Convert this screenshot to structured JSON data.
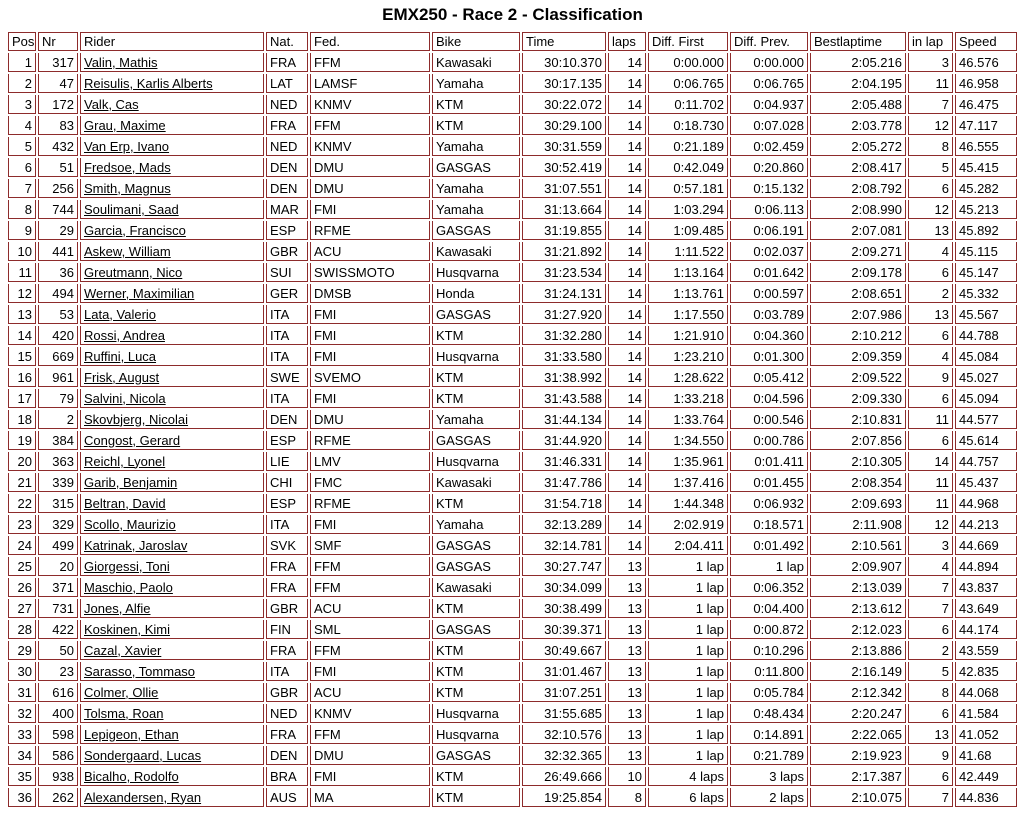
{
  "title": "EMX250 - Race 2 - Classification",
  "colors": {
    "border": "#8d2b2b",
    "text": "#000000",
    "background": "#ffffff"
  },
  "table": {
    "columns": [
      "Pos",
      "Nr",
      "Rider",
      "Nat.",
      "Fed.",
      "Bike",
      "Time",
      "laps",
      "Diff. First",
      "Diff. Prev.",
      "Bestlaptime",
      "in lap",
      "Speed"
    ],
    "rows": [
      [
        "1",
        "317",
        "Valin, Mathis",
        "FRA",
        "FFM",
        "Kawasaki",
        "30:10.370",
        "14",
        "0:00.000",
        "0:00.000",
        "2:05.216",
        "3",
        "46.576"
      ],
      [
        "2",
        "47",
        "Reisulis, Karlis Alberts",
        "LAT",
        "LAMSF",
        "Yamaha",
        "30:17.135",
        "14",
        "0:06.765",
        "0:06.765",
        "2:04.195",
        "11",
        "46.958"
      ],
      [
        "3",
        "172",
        "Valk, Cas",
        "NED",
        "KNMV",
        "KTM",
        "30:22.072",
        "14",
        "0:11.702",
        "0:04.937",
        "2:05.488",
        "7",
        "46.475"
      ],
      [
        "4",
        "83",
        "Grau, Maxime",
        "FRA",
        "FFM",
        "KTM",
        "30:29.100",
        "14",
        "0:18.730",
        "0:07.028",
        "2:03.778",
        "12",
        "47.117"
      ],
      [
        "5",
        "432",
        "Van Erp, Ivano",
        "NED",
        "KNMV",
        "Yamaha",
        "30:31.559",
        "14",
        "0:21.189",
        "0:02.459",
        "2:05.272",
        "8",
        "46.555"
      ],
      [
        "6",
        "51",
        "Fredsoe, Mads",
        "DEN",
        "DMU",
        "GASGAS",
        "30:52.419",
        "14",
        "0:42.049",
        "0:20.860",
        "2:08.417",
        "5",
        "45.415"
      ],
      [
        "7",
        "256",
        "Smith, Magnus",
        "DEN",
        "DMU",
        "Yamaha",
        "31:07.551",
        "14",
        "0:57.181",
        "0:15.132",
        "2:08.792",
        "6",
        "45.282"
      ],
      [
        "8",
        "744",
        "Soulimani, Saad",
        "MAR",
        "FMI",
        "Yamaha",
        "31:13.664",
        "14",
        "1:03.294",
        "0:06.113",
        "2:08.990",
        "12",
        "45.213"
      ],
      [
        "9",
        "29",
        "Garcia, Francisco",
        "ESP",
        "RFME",
        "GASGAS",
        "31:19.855",
        "14",
        "1:09.485",
        "0:06.191",
        "2:07.081",
        "13",
        "45.892"
      ],
      [
        "10",
        "441",
        "Askew, William",
        "GBR",
        "ACU",
        "Kawasaki",
        "31:21.892",
        "14",
        "1:11.522",
        "0:02.037",
        "2:09.271",
        "4",
        "45.115"
      ],
      [
        "11",
        "36",
        "Greutmann, Nico",
        "SUI",
        "SWISSMOTO",
        "Husqvarna",
        "31:23.534",
        "14",
        "1:13.164",
        "0:01.642",
        "2:09.178",
        "6",
        "45.147"
      ],
      [
        "12",
        "494",
        "Werner, Maximilian",
        "GER",
        "DMSB",
        "Honda",
        "31:24.131",
        "14",
        "1:13.761",
        "0:00.597",
        "2:08.651",
        "2",
        "45.332"
      ],
      [
        "13",
        "53",
        "Lata, Valerio",
        "ITA",
        "FMI",
        "GASGAS",
        "31:27.920",
        "14",
        "1:17.550",
        "0:03.789",
        "2:07.986",
        "13",
        "45.567"
      ],
      [
        "14",
        "420",
        "Rossi, Andrea",
        "ITA",
        "FMI",
        "KTM",
        "31:32.280",
        "14",
        "1:21.910",
        "0:04.360",
        "2:10.212",
        "6",
        "44.788"
      ],
      [
        "15",
        "669",
        "Ruffini, Luca",
        "ITA",
        "FMI",
        "Husqvarna",
        "31:33.580",
        "14",
        "1:23.210",
        "0:01.300",
        "2:09.359",
        "4",
        "45.084"
      ],
      [
        "16",
        "961",
        "Frisk, August",
        "SWE",
        "SVEMO",
        "KTM",
        "31:38.992",
        "14",
        "1:28.622",
        "0:05.412",
        "2:09.522",
        "9",
        "45.027"
      ],
      [
        "17",
        "79",
        "Salvini, Nicola",
        "ITA",
        "FMI",
        "KTM",
        "31:43.588",
        "14",
        "1:33.218",
        "0:04.596",
        "2:09.330",
        "6",
        "45.094"
      ],
      [
        "18",
        "2",
        "Skovbjerg, Nicolai",
        "DEN",
        "DMU",
        "Yamaha",
        "31:44.134",
        "14",
        "1:33.764",
        "0:00.546",
        "2:10.831",
        "11",
        "44.577"
      ],
      [
        "19",
        "384",
        "Congost, Gerard",
        "ESP",
        "RFME",
        "GASGAS",
        "31:44.920",
        "14",
        "1:34.550",
        "0:00.786",
        "2:07.856",
        "6",
        "45.614"
      ],
      [
        "20",
        "363",
        "Reichl, Lyonel",
        "LIE",
        "LMV",
        "Husqvarna",
        "31:46.331",
        "14",
        "1:35.961",
        "0:01.411",
        "2:10.305",
        "14",
        "44.757"
      ],
      [
        "21",
        "339",
        "Garib, Benjamin",
        "CHI",
        "FMC",
        "Kawasaki",
        "31:47.786",
        "14",
        "1:37.416",
        "0:01.455",
        "2:08.354",
        "11",
        "45.437"
      ],
      [
        "22",
        "315",
        "Beltran, David",
        "ESP",
        "RFME",
        "KTM",
        "31:54.718",
        "14",
        "1:44.348",
        "0:06.932",
        "2:09.693",
        "11",
        "44.968"
      ],
      [
        "23",
        "329",
        "Scollo, Maurizio",
        "ITA",
        "FMI",
        "Yamaha",
        "32:13.289",
        "14",
        "2:02.919",
        "0:18.571",
        "2:11.908",
        "12",
        "44.213"
      ],
      [
        "24",
        "499",
        "Katrinak, Jaroslav",
        "SVK",
        "SMF",
        "GASGAS",
        "32:14.781",
        "14",
        "2:04.411",
        "0:01.492",
        "2:10.561",
        "3",
        "44.669"
      ],
      [
        "25",
        "20",
        "Giorgessi, Toni",
        "FRA",
        "FFM",
        "GASGAS",
        "30:27.747",
        "13",
        "1 lap",
        "1 lap",
        "2:09.907",
        "4",
        "44.894"
      ],
      [
        "26",
        "371",
        "Maschio, Paolo",
        "FRA",
        "FFM",
        "Kawasaki",
        "30:34.099",
        "13",
        "1 lap",
        "0:06.352",
        "2:13.039",
        "7",
        "43.837"
      ],
      [
        "27",
        "731",
        "Jones, Alfie",
        "GBR",
        "ACU",
        "KTM",
        "30:38.499",
        "13",
        "1 lap",
        "0:04.400",
        "2:13.612",
        "7",
        "43.649"
      ],
      [
        "28",
        "422",
        "Koskinen, Kimi",
        "FIN",
        "SML",
        "GASGAS",
        "30:39.371",
        "13",
        "1 lap",
        "0:00.872",
        "2:12.023",
        "6",
        "44.174"
      ],
      [
        "29",
        "50",
        "Cazal, Xavier",
        "FRA",
        "FFM",
        "KTM",
        "30:49.667",
        "13",
        "1 lap",
        "0:10.296",
        "2:13.886",
        "2",
        "43.559"
      ],
      [
        "30",
        "23",
        "Sarasso, Tommaso",
        "ITA",
        "FMI",
        "KTM",
        "31:01.467",
        "13",
        "1 lap",
        "0:11.800",
        "2:16.149",
        "5",
        "42.835"
      ],
      [
        "31",
        "616",
        "Colmer, Ollie",
        "GBR",
        "ACU",
        "KTM",
        "31:07.251",
        "13",
        "1 lap",
        "0:05.784",
        "2:12.342",
        "8",
        "44.068"
      ],
      [
        "32",
        "400",
        "Tolsma, Roan",
        "NED",
        "KNMV",
        "Husqvarna",
        "31:55.685",
        "13",
        "1 lap",
        "0:48.434",
        "2:20.247",
        "6",
        "41.584"
      ],
      [
        "33",
        "598",
        "Lepigeon, Ethan",
        "FRA",
        "FFM",
        "Husqvarna",
        "32:10.576",
        "13",
        "1 lap",
        "0:14.891",
        "2:22.065",
        "13",
        "41.052"
      ],
      [
        "34",
        "586",
        "Sondergaard, Lucas",
        "DEN",
        "DMU",
        "GASGAS",
        "32:32.365",
        "13",
        "1 lap",
        "0:21.789",
        "2:19.923",
        "9",
        "41.68"
      ],
      [
        "35",
        "938",
        "Bicalho, Rodolfo",
        "BRA",
        "FMI",
        "KTM",
        "26:49.666",
        "10",
        "4 laps",
        "3 laps",
        "2:17.387",
        "6",
        "42.449"
      ],
      [
        "36",
        "262",
        "Alexandersen, Ryan",
        "AUS",
        "MA",
        "KTM",
        "19:25.854",
        "8",
        "6 laps",
        "2 laps",
        "2:10.075",
        "7",
        "44.836"
      ]
    ]
  }
}
